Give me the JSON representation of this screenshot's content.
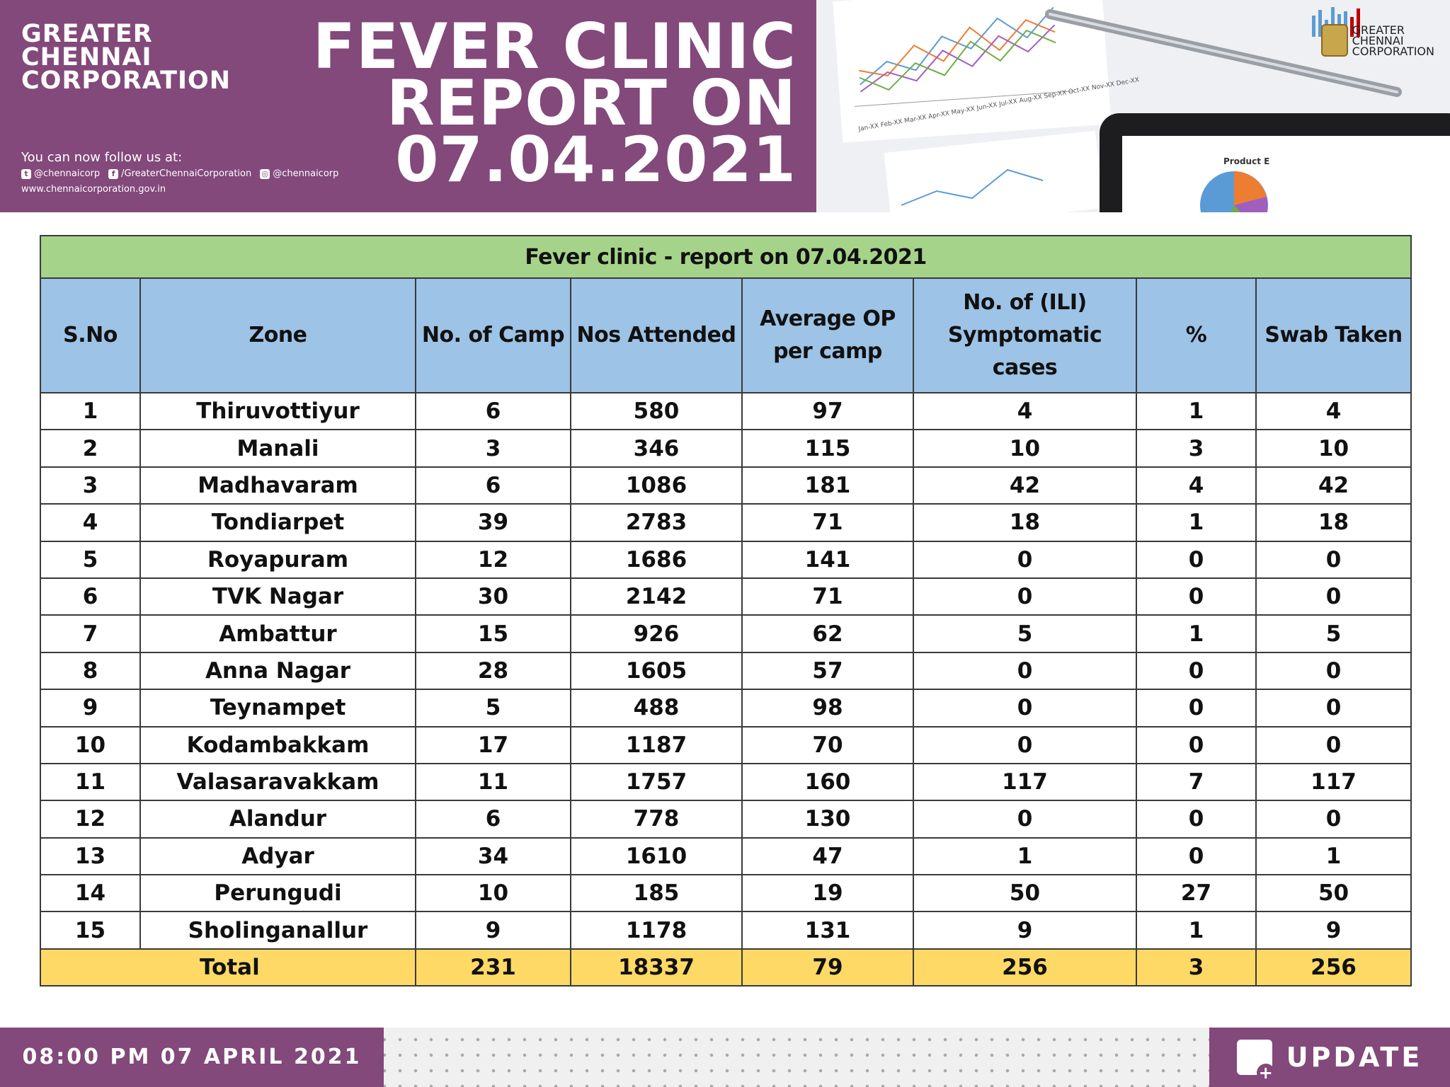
{
  "header": {
    "org_name": [
      "GREATER",
      "CHENNAI",
      "CORPORATION"
    ],
    "title_lines": [
      "FEVER CLINIC",
      "REPORT ON",
      "07.04.2021"
    ],
    "follow_label": "You can now follow us at:",
    "social": {
      "twitter": "@chennaicorp",
      "facebook": "/GreaterChennaiCorporation",
      "instagram": "@chennaicorp"
    },
    "website": "www.chennaicorporation.gov.in",
    "logo_text": [
      "GREATER",
      "CHENNAI",
      "CORPORATION"
    ]
  },
  "photo_labels": {
    "months": "Jan-XX Feb-XX Mar-XX Apr-XX May-XX Jun-XX Jul-XX Aug-XX Sep-XX Oct-XX Nov-XX Dec-XX",
    "product": "Product E"
  },
  "table": {
    "caption": "Fever clinic - report on 07.04.2021",
    "columns": [
      "S.No",
      "Zone",
      "No. of Camp",
      "Nos Attended",
      "Average OP per camp",
      "No. of (ILI) Symptomatic cases",
      "%",
      "Swab Taken"
    ],
    "rows": [
      [
        "1",
        "Thiruvottiyur",
        "6",
        "580",
        "97",
        "4",
        "1",
        "4"
      ],
      [
        "2",
        "Manali",
        "3",
        "346",
        "115",
        "10",
        "3",
        "10"
      ],
      [
        "3",
        "Madhavaram",
        "6",
        "1086",
        "181",
        "42",
        "4",
        "42"
      ],
      [
        "4",
        "Tondiarpet",
        "39",
        "2783",
        "71",
        "18",
        "1",
        "18"
      ],
      [
        "5",
        "Royapuram",
        "12",
        "1686",
        "141",
        "0",
        "0",
        "0"
      ],
      [
        "6",
        "TVK Nagar",
        "30",
        "2142",
        "71",
        "0",
        "0",
        "0"
      ],
      [
        "7",
        "Ambattur",
        "15",
        "926",
        "62",
        "5",
        "1",
        "5"
      ],
      [
        "8",
        "Anna Nagar",
        "28",
        "1605",
        "57",
        "0",
        "0",
        "0"
      ],
      [
        "9",
        "Teynampet",
        "5",
        "488",
        "98",
        "0",
        "0",
        "0"
      ],
      [
        "10",
        "Kodambakkam",
        "17",
        "1187",
        "70",
        "0",
        "0",
        "0"
      ],
      [
        "11",
        "Valasaravakkam",
        "11",
        "1757",
        "160",
        "117",
        "7",
        "117"
      ],
      [
        "12",
        "Alandur",
        "6",
        "778",
        "130",
        "0",
        "0",
        "0"
      ],
      [
        "13",
        "Adyar",
        "34",
        "1610",
        "47",
        "1",
        "0",
        "1"
      ],
      [
        "14",
        "Perungudi",
        "10",
        "185",
        "19",
        "50",
        "27",
        "50"
      ],
      [
        "15",
        "Sholinganallur",
        "9",
        "1178",
        "131",
        "9",
        "1",
        "9"
      ]
    ],
    "total": {
      "label": "Total",
      "camps": "231",
      "attended": "18337",
      "avg_op": "79",
      "ili": "256",
      "percent": "3",
      "swab": "256"
    }
  },
  "footer": {
    "timestamp": "08:00 PM 07 APRIL 2021",
    "badge": "UPDATE"
  },
  "colors": {
    "brand_purple": "#82497a",
    "caption_green": "#a6d38a",
    "header_blue": "#9dc3e6",
    "total_yellow": "#ffd966"
  }
}
